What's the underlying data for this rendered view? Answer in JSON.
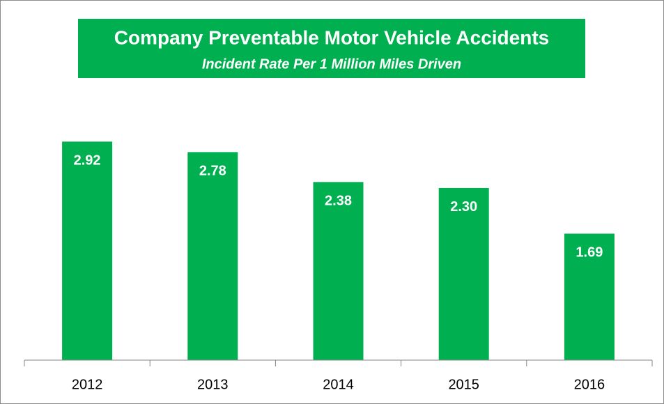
{
  "chart_data": {
    "type": "bar",
    "title": "Company Preventable Motor Vehicle Accidents",
    "subtitle": "Incident Rate Per 1 Million Miles Driven",
    "categories": [
      "2012",
      "2013",
      "2014",
      "2015",
      "2016"
    ],
    "values": [
      2.92,
      2.78,
      2.38,
      2.3,
      1.69
    ],
    "value_labels": [
      "2.92",
      "2.78",
      "2.38",
      "2.30",
      "1.69"
    ],
    "color": "#00b050",
    "ylim": [
      0,
      3.5
    ]
  }
}
